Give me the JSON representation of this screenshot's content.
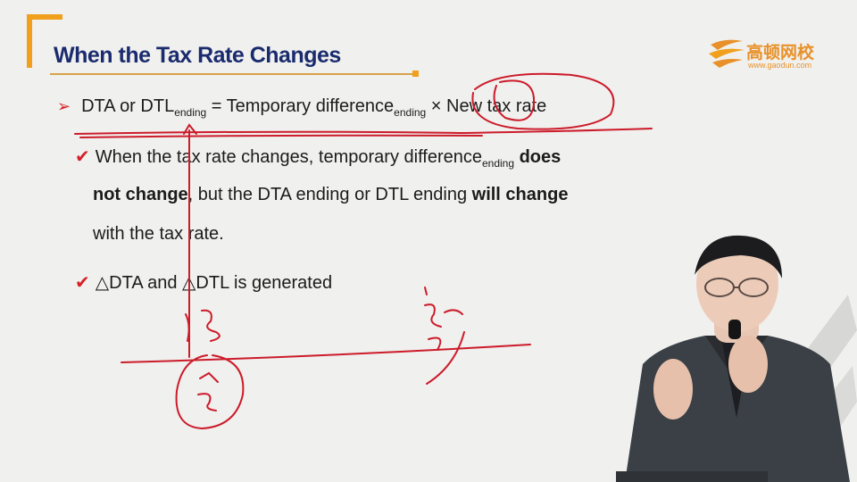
{
  "slide": {
    "title": "When the Tax Rate Changes",
    "logo": {
      "name": "高顿网校",
      "url": "www.gaodun.com"
    },
    "formula": {
      "lhs": "DTA or DTL",
      "lhs_sub": "ending",
      "eq": " = Temporary difference",
      "mid_sub": "ending",
      "rhs": " × New tax rate"
    },
    "point1": {
      "part1": "When the tax rate changes, temporary difference",
      "sub": "ending",
      "bold1": " does",
      "bold2": "not change",
      "part2": ", but the DTA ending or DTL ending ",
      "bold3": "will change",
      "part3": "with the tax rate."
    },
    "point2": {
      "text": "△DTA and △DTL is generated"
    }
  },
  "colors": {
    "title": "#1a2b6e",
    "accent": "#f0a01c",
    "ink": "#cc1b2a",
    "logo": "#e8912a"
  }
}
